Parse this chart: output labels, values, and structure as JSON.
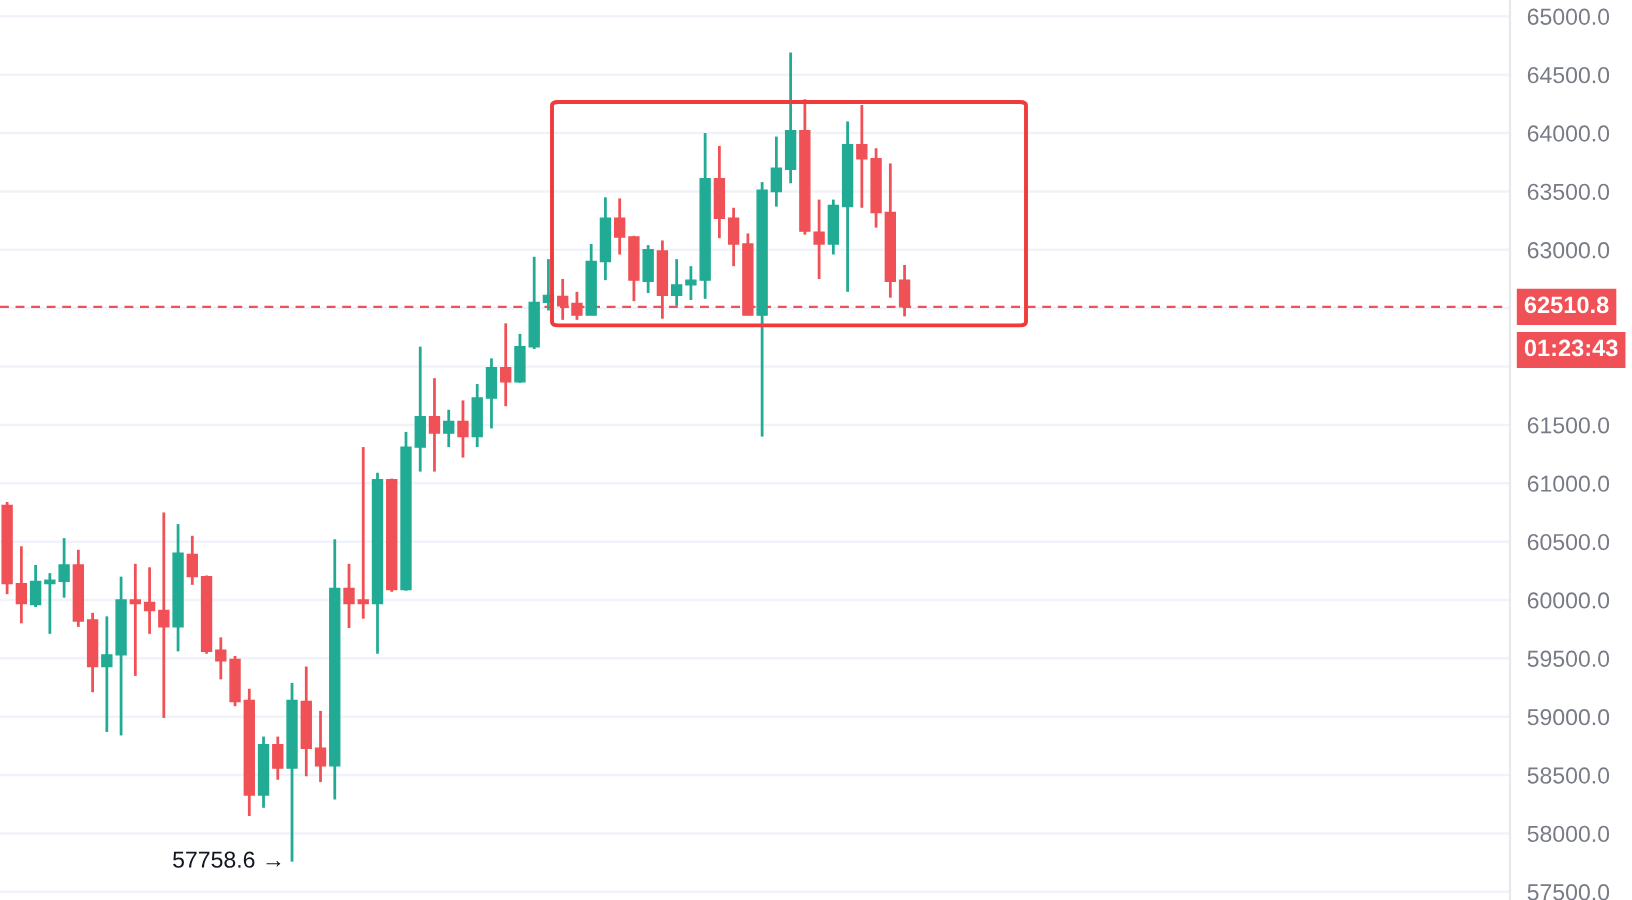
{
  "chart_data": {
    "type": "candlestick",
    "categories": [
      null,
      null,
      null,
      null,
      null,
      null,
      null,
      null,
      null,
      null,
      null,
      null,
      null,
      null,
      null,
      null,
      null,
      null,
      null,
      null,
      null,
      null,
      null,
      null,
      null,
      null,
      null,
      null,
      null,
      null,
      null,
      null,
      null,
      null,
      null,
      null,
      null,
      null,
      null,
      null,
      null,
      null,
      null,
      null,
      null,
      null,
      null,
      null,
      null,
      null,
      null,
      null,
      null,
      null,
      null,
      null,
      null,
      null,
      null,
      null,
      null,
      null,
      null,
      null,
      null,
      null,
      null,
      null,
      null,
      null,
      null,
      null,
      null,
      null,
      null,
      null,
      null,
      null,
      null,
      null,
      null,
      null,
      null,
      null,
      null,
      null,
      null,
      null,
      null,
      null,
      null,
      null,
      null,
      null,
      null,
      null,
      null,
      null,
      null,
      null,
      null,
      null,
      null,
      null,
      null,
      null
    ],
    "ohlc": [
      [
        60810,
        60840,
        60050,
        60140
      ],
      [
        60140,
        60460,
        59800,
        59970
      ],
      [
        59960,
        60300,
        59940,
        60160
      ],
      [
        60140,
        60230,
        59710,
        60170
      ],
      [
        60160,
        60530,
        60020,
        60300
      ],
      [
        60300,
        60430,
        59770,
        59820
      ],
      [
        59830,
        59890,
        59210,
        59430
      ],
      [
        59430,
        59860,
        58870,
        59530
      ],
      [
        59530,
        60200,
        58840,
        60000
      ],
      [
        60000,
        60310,
        59350,
        59970
      ],
      [
        59980,
        60280,
        59710,
        59910
      ],
      [
        59910,
        60750,
        58990,
        59770
      ],
      [
        59770,
        60650,
        59560,
        60400
      ],
      [
        60390,
        60550,
        60130,
        60200
      ],
      [
        60200,
        60210,
        59540,
        59560
      ],
      [
        59570,
        59680,
        59320,
        59480
      ],
      [
        59490,
        59520,
        59090,
        59130
      ],
      [
        59140,
        59240,
        58150,
        58330
      ],
      [
        58330,
        58830,
        58220,
        58760
      ],
      [
        58760,
        58830,
        58460,
        58560
      ],
      [
        58560,
        59290,
        57758.6,
        59140
      ],
      [
        59130,
        59430,
        58490,
        58730
      ],
      [
        58730,
        59050,
        58440,
        58580
      ],
      [
        58580,
        60520,
        58290,
        60100
      ],
      [
        60100,
        60310,
        59760,
        59970
      ],
      [
        60000,
        61310,
        59840,
        59970
      ],
      [
        59970,
        61090,
        59540,
        61030
      ],
      [
        61030,
        61040,
        60070,
        60090
      ],
      [
        60090,
        61440,
        60080,
        61310
      ],
      [
        61310,
        62170,
        61100,
        61570
      ],
      [
        61570,
        61900,
        61100,
        61430
      ],
      [
        61430,
        61630,
        61310,
        61530
      ],
      [
        61530,
        61710,
        61220,
        61400
      ],
      [
        61400,
        61850,
        61310,
        61730
      ],
      [
        61730,
        62070,
        61470,
        61990
      ],
      [
        61990,
        62370,
        61660,
        61870
      ],
      [
        61870,
        62280,
        61860,
        62170
      ],
      [
        62170,
        62940,
        62150,
        62550
      ],
      [
        62550,
        62920,
        62480,
        62610
      ],
      [
        62600,
        62750,
        62400,
        62520
      ],
      [
        62540,
        62640,
        62400,
        62440
      ],
      [
        62440,
        63050,
        62440,
        62900
      ],
      [
        62900,
        63450,
        62740,
        63270
      ],
      [
        63270,
        63440,
        62960,
        63110
      ],
      [
        63110,
        63120,
        62560,
        62740
      ],
      [
        62730,
        63040,
        62630,
        63000
      ],
      [
        62990,
        63080,
        62410,
        62610
      ],
      [
        62610,
        62920,
        62520,
        62700
      ],
      [
        62700,
        62860,
        62570,
        62740
      ],
      [
        62740,
        64000,
        62580,
        63610
      ],
      [
        63610,
        63890,
        63100,
        63270
      ],
      [
        63270,
        63360,
        62860,
        63050
      ],
      [
        63050,
        63140,
        62440,
        62440
      ],
      [
        62440,
        63580,
        61400,
        63510
      ],
      [
        63500,
        63970,
        63370,
        63700
      ],
      [
        63690,
        64690,
        63570,
        64020
      ],
      [
        64020,
        64290,
        63130,
        63160
      ],
      [
        63150,
        63430,
        62750,
        63050
      ],
      [
        63050,
        63430,
        62960,
        63380
      ],
      [
        63370,
        64100,
        62640,
        63900
      ],
      [
        63900,
        64240,
        63360,
        63780
      ],
      [
        63780,
        63870,
        63190,
        63320
      ],
      [
        63320,
        63740,
        62590,
        62730
      ],
      [
        62740,
        62870,
        62430,
        62510.8
      ],
      null,
      null,
      null,
      null,
      null,
      null,
      null,
      null,
      null,
      null,
      null,
      null,
      null,
      null,
      null,
      null,
      null,
      null,
      null,
      null,
      null,
      null,
      null,
      null,
      null,
      null,
      null,
      null,
      null,
      null,
      null,
      null,
      null,
      null,
      null,
      null,
      null,
      null,
      null,
      null,
      null,
      null
    ],
    "colors": [
      "#f05156",
      "#f05156",
      "#22ab94",
      "#22ab94",
      "#22ab94",
      "#f05156",
      "#f05156",
      "#22ab94",
      "#22ab94",
      "#f05156",
      "#f05156",
      "#f05156",
      "#22ab94",
      "#f05156",
      "#f05156",
      "#f05156",
      "#f05156",
      "#f05156",
      "#22ab94",
      "#f05156",
      "#22ab94",
      "#f05156",
      "#f05156",
      "#22ab94",
      "#f05156",
      "#f05156",
      "#22ab94",
      "#f05156",
      "#22ab94",
      "#22ab94",
      "#f05156",
      "#22ab94",
      "#f05156",
      "#22ab94",
      "#22ab94",
      "#f05156",
      "#22ab94",
      "#22ab94",
      "#22ab94",
      "#f05156",
      "#f05156",
      "#22ab94",
      "#22ab94",
      "#f05156",
      "#f05156",
      "#22ab94",
      "#f05156",
      "#22ab94",
      "#22ab94",
      "#22ab94",
      "#f05156",
      "#f05156",
      "#f05156",
      "#22ab94",
      "#22ab94",
      "#22ab94",
      "#f05156",
      "#f05156",
      "#22ab94",
      "#22ab94",
      "#f05156",
      "#f05156",
      "#f05156",
      "#f05156",
      null,
      null,
      null,
      null,
      null,
      null,
      null,
      null,
      null,
      null,
      null,
      null,
      null,
      null,
      null,
      null,
      null,
      null,
      null,
      null,
      null,
      null,
      null,
      null,
      null,
      null,
      null,
      null,
      null,
      null,
      null,
      null,
      null,
      null,
      null,
      null,
      null,
      null,
      null,
      null,
      null,
      null
    ],
    "ylim": [
      57430,
      65140
    ],
    "yticks": [
      {
        "value": 57500,
        "label": "57500.0"
      },
      {
        "value": 58000,
        "label": "58000.0"
      },
      {
        "value": 58500,
        "label": "58500.0"
      },
      {
        "value": 59000,
        "label": "59000.0"
      },
      {
        "value": 59500,
        "label": "59500.0"
      },
      {
        "value": 60000,
        "label": "60000.0"
      },
      {
        "value": 60500,
        "label": "60500.0"
      },
      {
        "value": 61000,
        "label": "61000.0"
      },
      {
        "value": 61500,
        "label": "61500.0"
      },
      {
        "value": 62000,
        "label": null
      },
      {
        "value": 62500,
        "label": null
      },
      {
        "value": 63000,
        "label": "63000.0"
      },
      {
        "value": 63500,
        "label": "63500.0"
      },
      {
        "value": 64000,
        "label": "64000.0"
      },
      {
        "value": 64500,
        "label": "64500.0"
      },
      {
        "value": 65000,
        "label": "65000.0"
      }
    ],
    "grid": "y",
    "tick_labels": "y",
    "ref_lines": [
      {
        "axis": "y",
        "value": 62510.8,
        "label": "62510.8",
        "color": "#f05156",
        "line_style": "dashed"
      }
    ],
    "annotations": [
      "57758.6 →",
      "01:23:43"
    ]
  }
}
